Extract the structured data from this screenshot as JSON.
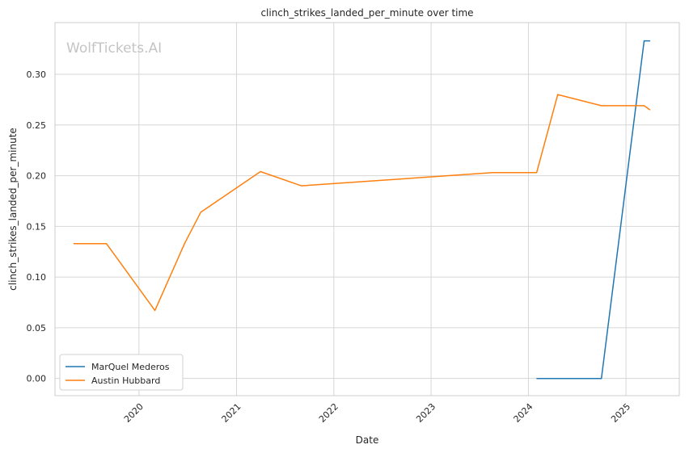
{
  "chart_data": {
    "type": "line",
    "title": "clinch_strikes_landed_per_minute over time",
    "xlabel": "Date",
    "ylabel": "clinch_strikes_landed_per_minute",
    "watermark": "WolfTickets.AI",
    "xlim": [
      "2019-02-20",
      "2025-07-20"
    ],
    "ylim": [
      -0.017,
      0.351
    ],
    "x_ticks": [
      "2020",
      "2021",
      "2022",
      "2023",
      "2024",
      "2025"
    ],
    "y_ticks": [
      "0.00",
      "0.05",
      "0.10",
      "0.15",
      "0.20",
      "0.25",
      "0.30"
    ],
    "grid": true,
    "legend_position": "lower-left",
    "series": [
      {
        "name": "MarQuel Mederos",
        "color": "#1f77b4",
        "points": [
          {
            "x": "2024-02-01",
            "y": 0.0
          },
          {
            "x": "2024-10-01",
            "y": 0.0
          },
          {
            "x": "2025-03-10",
            "y": 0.333
          },
          {
            "x": "2025-04-01",
            "y": 0.333
          }
        ]
      },
      {
        "name": "Austin Hubbard",
        "color": "#ff7f0e",
        "points": [
          {
            "x": "2019-05-01",
            "y": 0.133
          },
          {
            "x": "2019-09-01",
            "y": 0.133
          },
          {
            "x": "2020-03-01",
            "y": 0.067
          },
          {
            "x": "2020-06-20",
            "y": 0.133
          },
          {
            "x": "2020-08-20",
            "y": 0.164
          },
          {
            "x": "2021-04-01",
            "y": 0.204
          },
          {
            "x": "2021-09-01",
            "y": 0.19
          },
          {
            "x": "2023-08-20",
            "y": 0.203
          },
          {
            "x": "2024-02-01",
            "y": 0.203
          },
          {
            "x": "2024-04-20",
            "y": 0.28
          },
          {
            "x": "2024-10-01",
            "y": 0.269
          },
          {
            "x": "2025-03-10",
            "y": 0.269
          },
          {
            "x": "2025-04-01",
            "y": 0.265
          }
        ]
      }
    ]
  }
}
